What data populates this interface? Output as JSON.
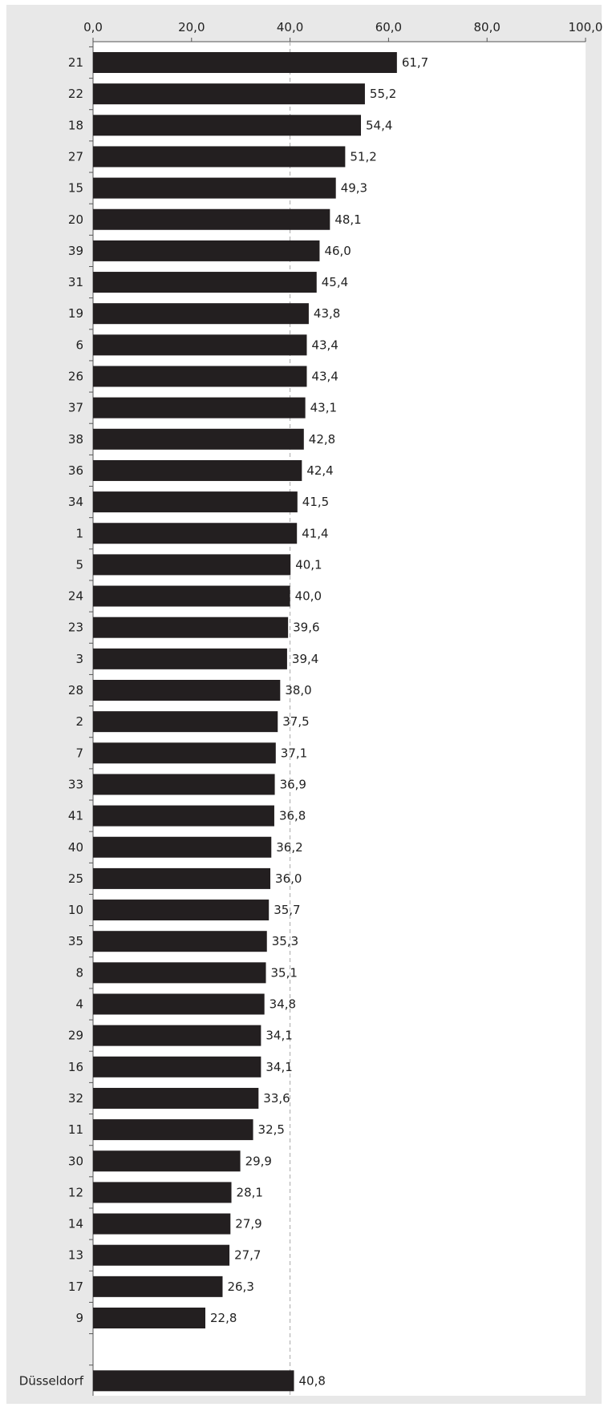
{
  "chart_data": {
    "type": "bar",
    "orientation": "horizontal",
    "title": "",
    "xlabel": "",
    "ylabel": "",
    "xlim": [
      0,
      100
    ],
    "x_ticks": [
      "0,0",
      "20,0",
      "40,0",
      "60,0",
      "80,0",
      "100,0"
    ],
    "reference_line": 40.0,
    "categories": [
      "21",
      "22",
      "18",
      "27",
      "15",
      "20",
      "39",
      "31",
      "19",
      "6",
      "26",
      "37",
      "38",
      "36",
      "34",
      "1",
      "5",
      "24",
      "23",
      "3",
      "28",
      "2",
      "7",
      "33",
      "41",
      "40",
      "25",
      "10",
      "35",
      "8",
      "4",
      "29",
      "16",
      "32",
      "11",
      "30",
      "12",
      "14",
      "13",
      "17",
      "9",
      "",
      "Düsseldorf"
    ],
    "values": [
      61.7,
      55.2,
      54.4,
      51.2,
      49.3,
      48.1,
      46.0,
      45.4,
      43.8,
      43.4,
      43.4,
      43.1,
      42.8,
      42.4,
      41.5,
      41.4,
      40.1,
      40.0,
      39.6,
      39.4,
      38.0,
      37.5,
      37.1,
      36.9,
      36.8,
      36.2,
      36.0,
      35.7,
      35.3,
      35.1,
      34.8,
      34.1,
      34.1,
      33.6,
      32.5,
      29.9,
      28.1,
      27.9,
      27.7,
      26.3,
      22.8,
      null,
      40.8
    ],
    "value_labels": [
      "61,7",
      "55,2",
      "54,4",
      "51,2",
      "49,3",
      "48,1",
      "46,0",
      "45,4",
      "43,8",
      "43,4",
      "43,4",
      "43,1",
      "42,8",
      "42,4",
      "41,5",
      "41,4",
      "40,1",
      "40,0",
      "39,6",
      "39,4",
      "38,0",
      "37,5",
      "37,1",
      "36,9",
      "36,8",
      "36,2",
      "36,0",
      "35,7",
      "35,3",
      "35,1",
      "34,8",
      "34,1",
      "34,1",
      "33,6",
      "32,5",
      "29,9",
      "28,1",
      "27,9",
      "27,7",
      "26,3",
      "22,8",
      "",
      "40,8"
    ],
    "grid": false,
    "legend": "none",
    "colors": {
      "bar": "#231f20",
      "panel": "#e8e8e8",
      "plot": "#ffffff",
      "axis": "#555555",
      "reference_line": "#aaaaaa",
      "text": "#222222"
    }
  }
}
